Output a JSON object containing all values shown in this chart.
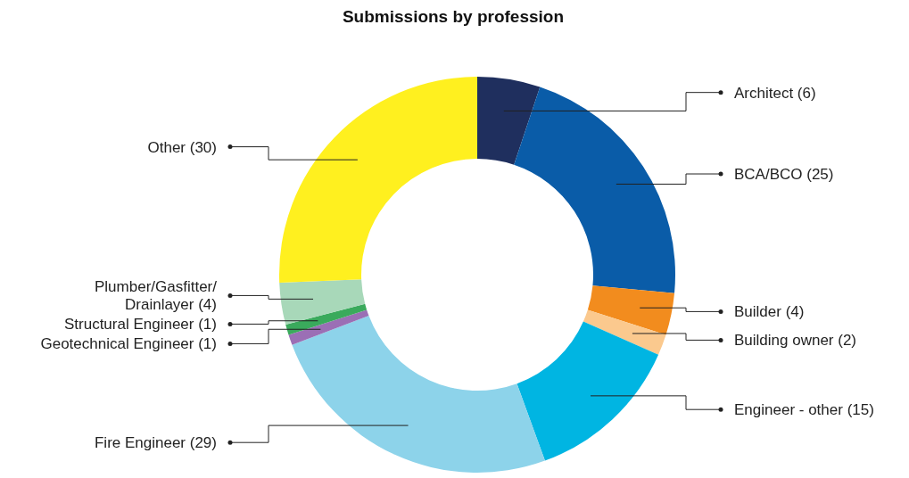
{
  "chart_data": {
    "type": "donut",
    "title": "Submissions by profession",
    "categories": [
      "Architect (6)",
      "BCA/BCO (25)",
      "Builder (4)",
      "Building owner (2)",
      "Engineer - other (15)",
      "Fire Engineer (29)",
      "Geotechnical Engineer (1)",
      "Structural Engineer (1)",
      "Plumber/Gasfitter/Drainlayer (4)",
      "Other (30)"
    ],
    "values": [
      6,
      25,
      4,
      2,
      15,
      29,
      1,
      1,
      4,
      30
    ],
    "colors": [
      "#1f2f5e",
      "#0a5ca8",
      "#f28c1e",
      "#fbc98e",
      "#00b5e2",
      "#8dd3ea",
      "#9b6fb5",
      "#3aaa5c",
      "#a8d8b9",
      "#fff01f"
    ]
  }
}
